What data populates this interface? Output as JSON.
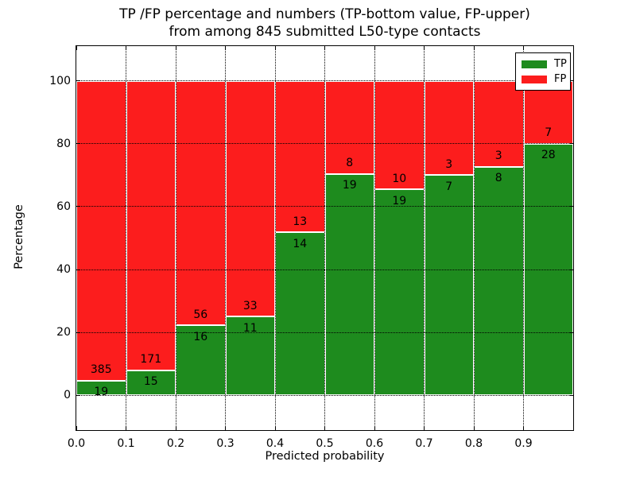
{
  "chart_data": {
    "type": "bar",
    "stacked": true,
    "title_line1": "TP /FP percentage and numbers (TP-bottom value, FP-upper)",
    "title_line2": "from among 845 submitted L50-type contacts",
    "xlabel": "Predicted probability",
    "ylabel": "Percentage",
    "total_submitted": 845,
    "x_ticks": [
      "0.0",
      "0.1",
      "0.2",
      "0.3",
      "0.4",
      "0.5",
      "0.6",
      "0.7",
      "0.8",
      "0.9"
    ],
    "y_ticks": [
      0,
      20,
      40,
      60,
      80,
      100
    ],
    "xlim": [
      0.0,
      1.0
    ],
    "ylim": [
      -11,
      111
    ],
    "grid": "dotted",
    "bar_bin_width": 0.1,
    "series": [
      {
        "name": "TP",
        "color": "#1e8b1e",
        "counts": [
          19,
          15,
          16,
          11,
          14,
          19,
          19,
          7,
          8,
          28
        ]
      },
      {
        "name": "FP",
        "color": "#fc1d1d",
        "counts": [
          385,
          171,
          56,
          33,
          13,
          8,
          10,
          3,
          3,
          7
        ]
      }
    ],
    "tp_percent": [
      4.7,
      8.1,
      22.2,
      25.0,
      51.9,
      70.4,
      65.5,
      70.0,
      72.7,
      80.0
    ],
    "legend": {
      "position": "upper right",
      "entries": [
        {
          "label": "TP",
          "color": "#1e8b1e"
        },
        {
          "label": "FP",
          "color": "#fc1d1d"
        }
      ]
    }
  }
}
